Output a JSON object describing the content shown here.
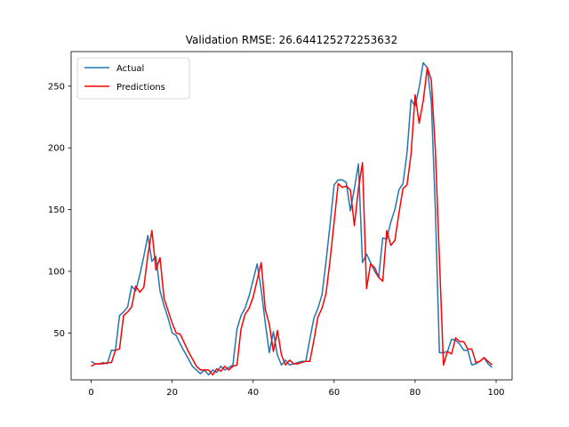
{
  "chart_data": {
    "type": "line",
    "title": "Validation RMSE: 26.644125272253632",
    "xlabel": "",
    "ylabel": "",
    "xlim": [
      -4.95,
      103.95
    ],
    "ylim": [
      12,
      278
    ],
    "x_ticks": [
      0,
      20,
      40,
      60,
      80,
      100
    ],
    "y_ticks": [
      50,
      100,
      150,
      200,
      250
    ],
    "legend": {
      "placement": "upper-left"
    },
    "series": [
      {
        "name": "Actual",
        "color": "#1f77b4",
        "values": [
          27,
          25,
          25,
          26,
          25,
          36,
          36,
          64,
          67,
          71,
          88,
          84,
          97,
          112,
          129,
          108,
          112,
          84,
          72,
          62,
          50,
          48,
          41,
          35,
          29,
          23,
          20,
          17,
          20,
          16,
          20,
          18,
          23,
          20,
          22,
          24,
          53,
          64,
          70,
          80,
          93,
          106,
          85,
          58,
          34,
          51,
          32,
          24,
          28,
          24,
          25,
          26,
          27,
          27,
          45,
          62,
          70,
          81,
          108,
          138,
          170,
          174,
          174,
          172,
          149,
          167,
          187,
          107,
          114,
          107,
          100,
          95,
          127,
          126,
          140,
          150,
          166,
          171,
          196,
          239,
          234,
          249,
          269,
          265,
          237,
          150,
          34,
          34,
          35,
          45,
          44,
          41,
          36,
          36,
          24,
          25,
          27,
          30,
          25,
          22
        ],
        "x_start": 0
      },
      {
        "name": "Predictions",
        "color": "#ff0000",
        "values": [
          23,
          25,
          25,
          25,
          26,
          26,
          36,
          37,
          64,
          67,
          71,
          88,
          83,
          87,
          113,
          133,
          101,
          111,
          78,
          68,
          58,
          50,
          49,
          42,
          35,
          29,
          23,
          20,
          20,
          20,
          16,
          21,
          19,
          23,
          20,
          23,
          24,
          53,
          65,
          70,
          79,
          93,
          107,
          69,
          57,
          35,
          52,
          32,
          24,
          28,
          25,
          25,
          26,
          27,
          27,
          44,
          63,
          70,
          82,
          109,
          140,
          171,
          168,
          169,
          166,
          137,
          167,
          188,
          86,
          106,
          103,
          95,
          92,
          133,
          121,
          125,
          147,
          167,
          170,
          195,
          243,
          220,
          238,
          265,
          255,
          198,
          110,
          24,
          35,
          33,
          46,
          43,
          43,
          37,
          37,
          26,
          27,
          30,
          27,
          24
        ]
      }
    ]
  }
}
